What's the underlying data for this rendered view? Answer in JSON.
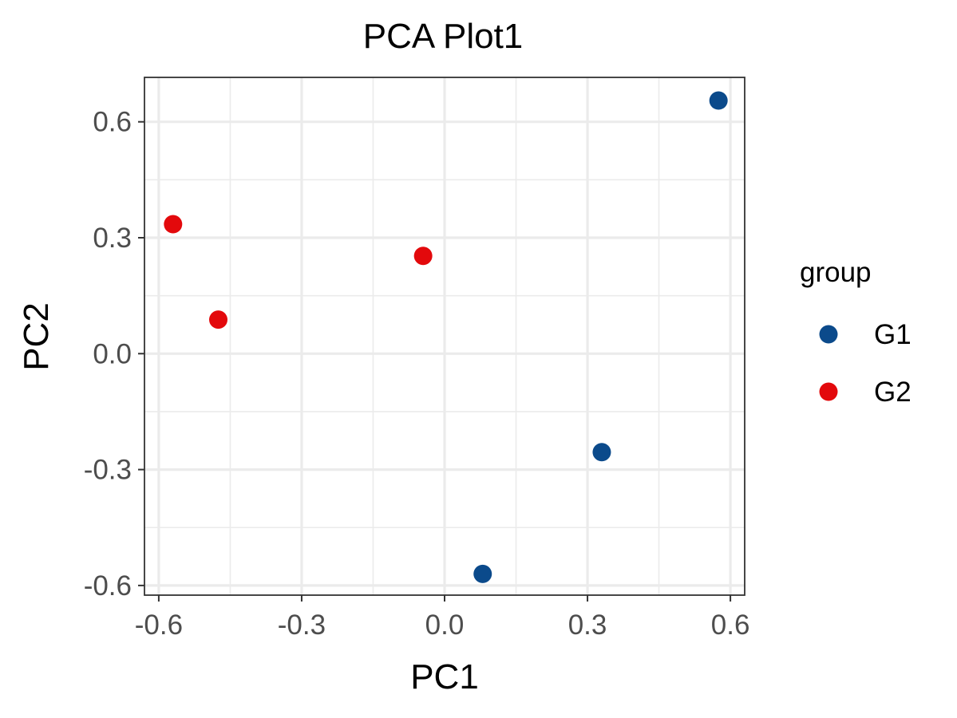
{
  "chart_data": {
    "type": "scatter",
    "title": "PCA Plot1",
    "xlabel": "PC1",
    "ylabel": "PC2",
    "xlim": [
      -0.63,
      0.63
    ],
    "ylim": [
      -0.625,
      0.715
    ],
    "x_ticks": [
      -0.6,
      -0.3,
      0.0,
      0.3,
      0.6
    ],
    "x_tick_labels": [
      "-0.6",
      "-0.3",
      "0.0",
      "0.3",
      "0.6"
    ],
    "y_ticks": [
      -0.6,
      -0.3,
      0.0,
      0.3,
      0.6
    ],
    "y_tick_labels": [
      "-0.6",
      "-0.3",
      "0.0",
      "0.3",
      "0.6"
    ],
    "grid": true,
    "legend": {
      "title": "group",
      "position": "right"
    },
    "series": [
      {
        "name": "G1",
        "color": "#0b4a8b",
        "points": [
          {
            "x": 0.575,
            "y": 0.655
          },
          {
            "x": 0.33,
            "y": -0.255
          },
          {
            "x": 0.08,
            "y": -0.57
          }
        ]
      },
      {
        "name": "G2",
        "color": "#e3090c",
        "points": [
          {
            "x": -0.57,
            "y": 0.335
          },
          {
            "x": -0.475,
            "y": 0.088
          },
          {
            "x": -0.045,
            "y": 0.253
          }
        ]
      }
    ]
  }
}
